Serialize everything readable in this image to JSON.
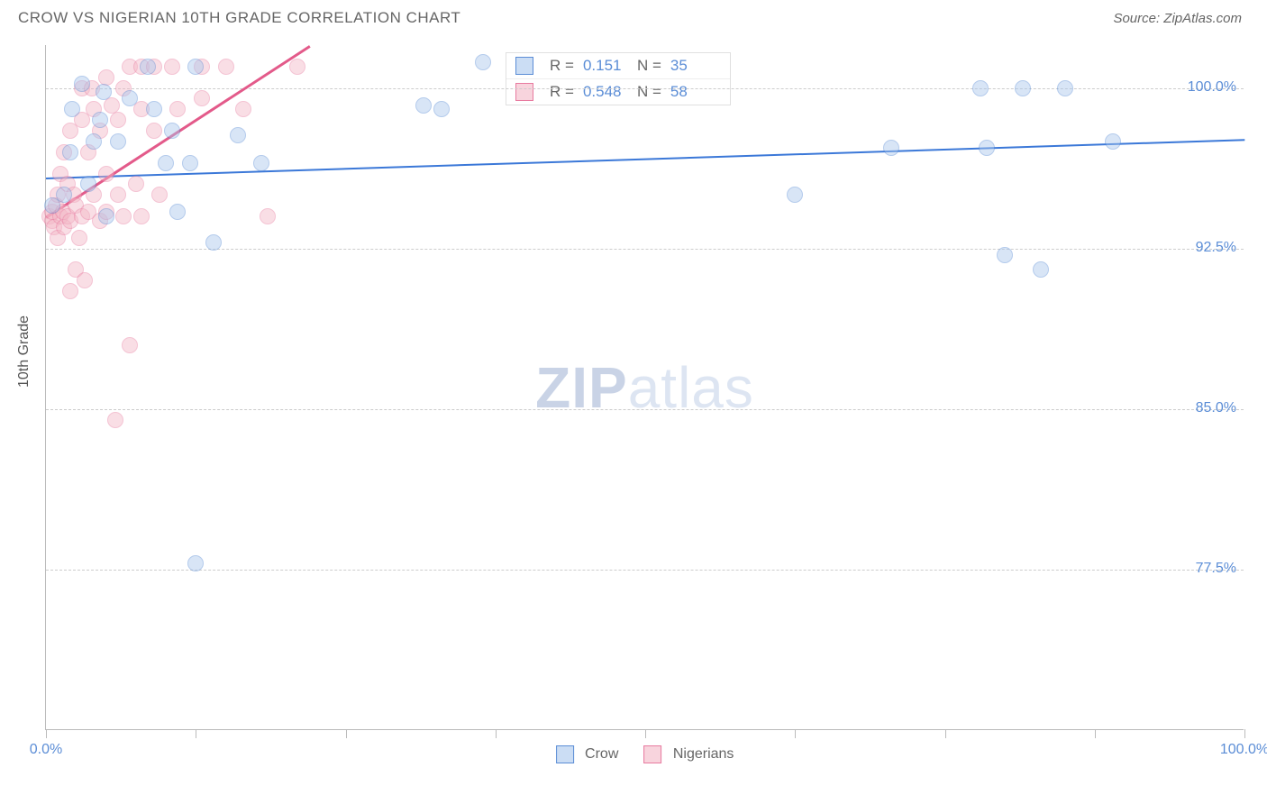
{
  "title": "CROW VS NIGERIAN 10TH GRADE CORRELATION CHART",
  "source_label": "Source: ZipAtlas.com",
  "watermark_zip": "ZIP",
  "watermark_atlas": "atlas",
  "yaxis_title": "10th Grade",
  "chart": {
    "type": "scatter",
    "xlim": [
      0,
      100
    ],
    "ylim": [
      70,
      102
    ],
    "background_color": "#ffffff",
    "grid_color": "#cccccc",
    "axis_color": "#bbbbbb",
    "point_radius": 9,
    "point_opacity": 0.45,
    "y_ticks": [
      {
        "value": 77.5,
        "label": "77.5%"
      },
      {
        "value": 85.0,
        "label": "85.0%"
      },
      {
        "value": 92.5,
        "label": "92.5%"
      },
      {
        "value": 100.0,
        "label": "100.0%"
      }
    ],
    "x_ticks": [
      0,
      12.5,
      25,
      37.5,
      50,
      62.5,
      75,
      87.5,
      100
    ],
    "x_labels": [
      {
        "value": 0,
        "label": "0.0%"
      },
      {
        "value": 100,
        "label": "100.0%"
      }
    ],
    "series": [
      {
        "name": "Crow",
        "fill": "#a9c6ec",
        "stroke": "#5b8dd6",
        "trend": {
          "x1": 0,
          "y1": 95.8,
          "x2": 100,
          "y2": 97.6,
          "color": "#3b78d8",
          "width": 2
        },
        "R": 0.151,
        "N": 35,
        "points": [
          [
            0.5,
            94.5
          ],
          [
            1.5,
            95.0
          ],
          [
            2.0,
            97.0
          ],
          [
            2.2,
            99.0
          ],
          [
            3.0,
            100.2
          ],
          [
            3.5,
            95.5
          ],
          [
            4.0,
            97.5
          ],
          [
            4.5,
            98.5
          ],
          [
            4.8,
            99.8
          ],
          [
            5.0,
            94.0
          ],
          [
            6.0,
            97.5
          ],
          [
            7.0,
            99.5
          ],
          [
            8.5,
            101.0
          ],
          [
            9.0,
            99.0
          ],
          [
            10.0,
            96.5
          ],
          [
            10.5,
            98.0
          ],
          [
            11.0,
            94.2
          ],
          [
            12.0,
            96.5
          ],
          [
            12.5,
            77.8
          ],
          [
            12.5,
            101.0
          ],
          [
            14.0,
            92.8
          ],
          [
            16.0,
            97.8
          ],
          [
            18.0,
            96.5
          ],
          [
            31.5,
            99.2
          ],
          [
            33.0,
            99.0
          ],
          [
            36.5,
            101.2
          ],
          [
            62.5,
            95.0
          ],
          [
            70.5,
            97.2
          ],
          [
            78.0,
            100.0
          ],
          [
            78.5,
            97.2
          ],
          [
            80.0,
            92.2
          ],
          [
            81.5,
            100.0
          ],
          [
            83.0,
            91.5
          ],
          [
            85.0,
            100.0
          ],
          [
            89.0,
            97.5
          ]
        ]
      },
      {
        "name": "Nigerians",
        "fill": "#f3b7c6",
        "stroke": "#e87ba0",
        "trend": {
          "x1": 0,
          "y1": 94.0,
          "x2": 22,
          "y2": 102.0,
          "color": "#e35a8a",
          "width": 2.5
        },
        "R": 0.548,
        "N": 58,
        "points": [
          [
            0.3,
            94.0
          ],
          [
            0.5,
            93.8
          ],
          [
            0.5,
            94.2
          ],
          [
            0.7,
            93.5
          ],
          [
            0.8,
            94.5
          ],
          [
            1.0,
            93.0
          ],
          [
            1.0,
            95.0
          ],
          [
            1.2,
            94.0
          ],
          [
            1.2,
            96.0
          ],
          [
            1.4,
            94.2
          ],
          [
            1.5,
            93.5
          ],
          [
            1.5,
            97.0
          ],
          [
            1.8,
            94.0
          ],
          [
            1.8,
            95.5
          ],
          [
            2.0,
            90.5
          ],
          [
            2.0,
            93.8
          ],
          [
            2.0,
            98.0
          ],
          [
            2.3,
            95.0
          ],
          [
            2.5,
            94.5
          ],
          [
            2.5,
            91.5
          ],
          [
            2.8,
            93.0
          ],
          [
            3.0,
            94.0
          ],
          [
            3.0,
            98.5
          ],
          [
            3.0,
            100.0
          ],
          [
            3.2,
            91.0
          ],
          [
            3.5,
            94.2
          ],
          [
            3.5,
            97.0
          ],
          [
            3.8,
            100.0
          ],
          [
            4.0,
            95.0
          ],
          [
            4.0,
            99.0
          ],
          [
            4.5,
            93.8
          ],
          [
            4.5,
            98.0
          ],
          [
            5.0,
            94.2
          ],
          [
            5.0,
            96.0
          ],
          [
            5.0,
            100.5
          ],
          [
            5.5,
            99.2
          ],
          [
            5.8,
            84.5
          ],
          [
            6.0,
            95.0
          ],
          [
            6.0,
            98.5
          ],
          [
            6.5,
            94.0
          ],
          [
            6.5,
            100.0
          ],
          [
            7.0,
            101.0
          ],
          [
            7.0,
            88.0
          ],
          [
            7.5,
            95.5
          ],
          [
            8.0,
            94.0
          ],
          [
            8.0,
            99.0
          ],
          [
            8.0,
            101.0
          ],
          [
            9.0,
            98.0
          ],
          [
            9.0,
            101.0
          ],
          [
            9.5,
            95.0
          ],
          [
            10.5,
            101.0
          ],
          [
            11.0,
            99.0
          ],
          [
            13.0,
            99.5
          ],
          [
            13.0,
            101.0
          ],
          [
            15.0,
            101.0
          ],
          [
            16.5,
            99.0
          ],
          [
            18.5,
            94.0
          ],
          [
            21.0,
            101.0
          ]
        ]
      }
    ],
    "stat_box": {
      "R_label": "R = ",
      "N_label": "N = "
    },
    "bottom_legend": [
      {
        "label": "Crow",
        "fill": "#a9c6ec",
        "stroke": "#5b8dd6"
      },
      {
        "label": "Nigerians",
        "fill": "#f3b7c6",
        "stroke": "#e87ba0"
      }
    ]
  }
}
